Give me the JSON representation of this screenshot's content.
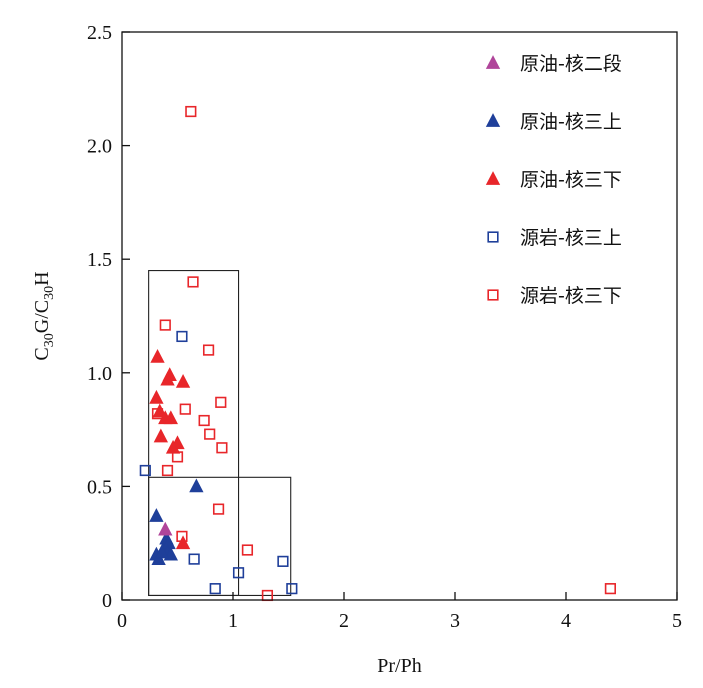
{
  "chart_data": {
    "type": "scatter",
    "xlabel": "Pr/Ph",
    "ylabel": {
      "parts": [
        "C",
        "30",
        "G/C",
        "30",
        "H"
      ]
    },
    "xlim": [
      0,
      5
    ],
    "ylim": [
      0,
      2.5
    ],
    "x_ticks": [
      {
        "v": 0,
        "label": "0"
      },
      {
        "v": 1,
        "label": "1"
      },
      {
        "v": 2,
        "label": "2"
      },
      {
        "v": 3,
        "label": "3"
      },
      {
        "v": 4,
        "label": "4"
      },
      {
        "v": 5,
        "label": "5"
      }
    ],
    "y_ticks": [
      {
        "v": 0,
        "label": "0"
      },
      {
        "v": 0.5,
        "label": "0.5"
      },
      {
        "v": 1,
        "label": "1.0"
      },
      {
        "v": 1.5,
        "label": "1.5"
      },
      {
        "v": 2,
        "label": "2.0"
      },
      {
        "v": 2.5,
        "label": "2.5"
      }
    ],
    "grid": false,
    "legend_position": "top-right",
    "boxes": [
      {
        "x0": 0.24,
        "x1": 1.05,
        "y0": 0.02,
        "y1": 1.45
      },
      {
        "x0": 0.24,
        "x1": 1.52,
        "y0": 0.02,
        "y1": 0.54
      }
    ],
    "series": [
      {
        "name": "原油-核二段",
        "marker": "triangle-filled",
        "color": "#b0459a",
        "points": [
          [
            0.39,
            0.31
          ]
        ]
      },
      {
        "name": "原油-核三上",
        "marker": "triangle-filled",
        "color": "#1f3f9a",
        "points": [
          [
            0.31,
            0.37
          ],
          [
            0.67,
            0.5
          ],
          [
            0.31,
            0.2
          ],
          [
            0.33,
            0.18
          ],
          [
            0.38,
            0.23
          ],
          [
            0.4,
            0.27
          ],
          [
            0.42,
            0.25
          ],
          [
            0.41,
            0.21
          ],
          [
            0.44,
            0.2
          ],
          [
            0.36,
            0.21
          ]
        ]
      },
      {
        "name": "原油-核三下",
        "marker": "triangle-filled",
        "color": "#e8262a",
        "points": [
          [
            0.32,
            1.07
          ],
          [
            0.43,
            0.99
          ],
          [
            0.41,
            0.97
          ],
          [
            0.55,
            0.96
          ],
          [
            0.31,
            0.89
          ],
          [
            0.34,
            0.83
          ],
          [
            0.39,
            0.8
          ],
          [
            0.44,
            0.8
          ],
          [
            0.35,
            0.72
          ],
          [
            0.5,
            0.69
          ],
          [
            0.46,
            0.67
          ],
          [
            0.55,
            0.25
          ]
        ]
      },
      {
        "name": "源岩-核三上",
        "marker": "square-open",
        "color": "#1f3f9a",
        "points": [
          [
            0.21,
            0.57
          ],
          [
            0.54,
            1.16
          ],
          [
            0.65,
            0.18
          ],
          [
            0.84,
            0.05
          ],
          [
            1.05,
            0.12
          ],
          [
            1.45,
            0.17
          ],
          [
            1.53,
            0.05
          ]
        ]
      },
      {
        "name": "源岩-核三下",
        "marker": "square-open",
        "color": "#e8262a",
        "points": [
          [
            0.62,
            2.15
          ],
          [
            0.64,
            1.4
          ],
          [
            0.39,
            1.21
          ],
          [
            0.78,
            1.1
          ],
          [
            0.89,
            0.87
          ],
          [
            0.57,
            0.84
          ],
          [
            0.32,
            0.82
          ],
          [
            0.74,
            0.79
          ],
          [
            0.79,
            0.73
          ],
          [
            0.9,
            0.67
          ],
          [
            0.5,
            0.63
          ],
          [
            0.41,
            0.57
          ],
          [
            0.87,
            0.4
          ],
          [
            0.54,
            0.28
          ],
          [
            1.13,
            0.22
          ],
          [
            1.31,
            0.02
          ],
          [
            4.4,
            0.05
          ]
        ]
      }
    ]
  }
}
